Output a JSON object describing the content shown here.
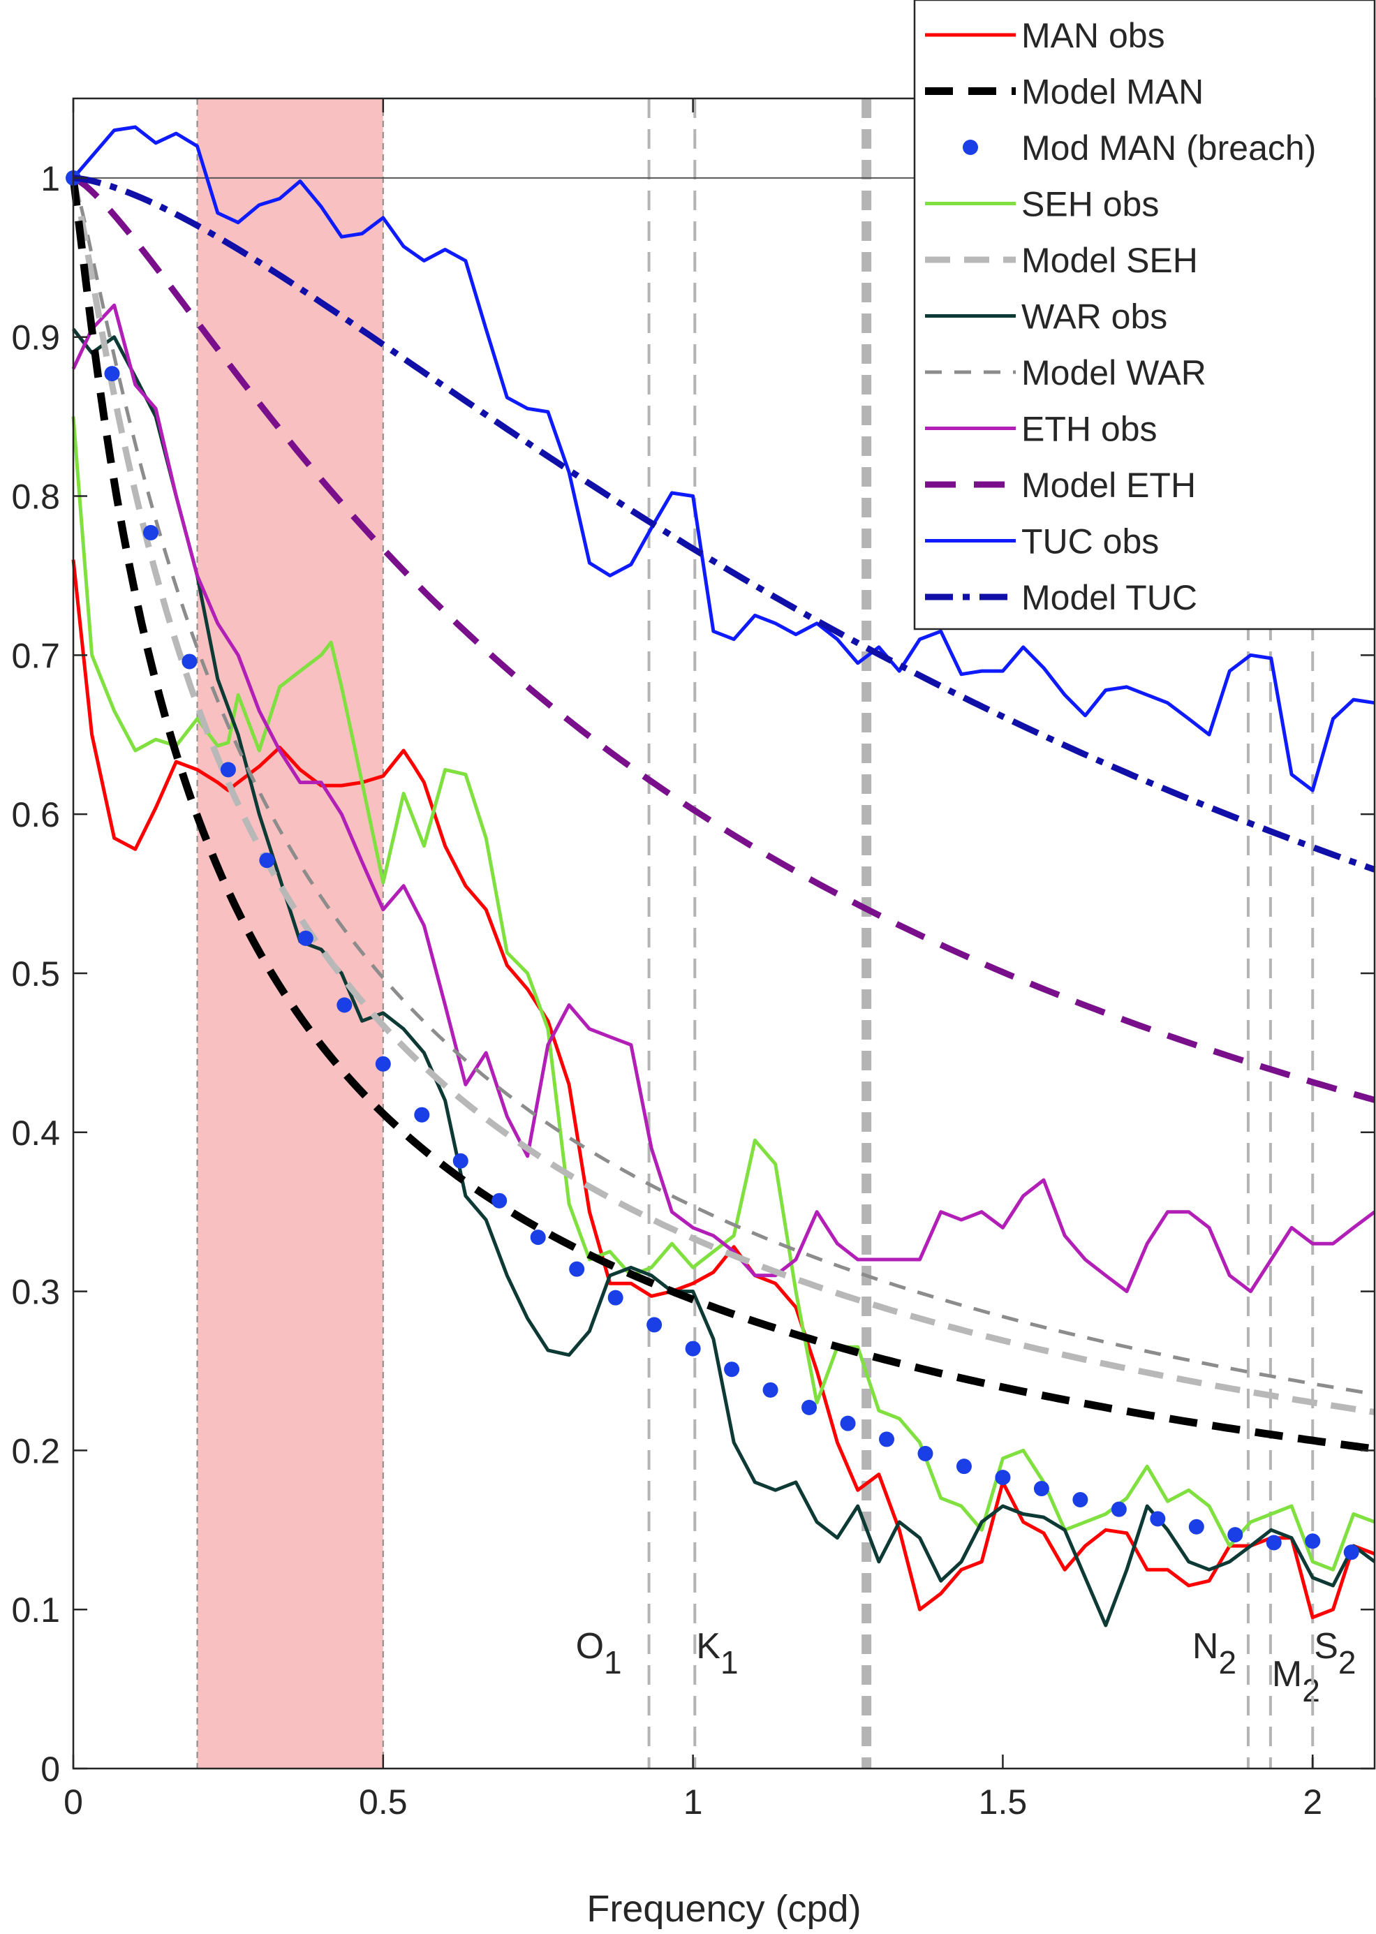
{
  "chart_data": {
    "type": "line",
    "xlabel": "Frequency (cpd)",
    "ylabel": "",
    "xlim": [
      0,
      2.1
    ],
    "ylim": [
      0,
      1.05
    ],
    "xticks": [
      0,
      0.5,
      1,
      1.5,
      2
    ],
    "xtick_labels": [
      "0",
      "0.5",
      "1",
      "1.5",
      "2"
    ],
    "yticks": [
      0,
      0.1,
      0.2,
      0.3,
      0.4,
      0.5,
      0.6,
      0.7,
      0.8,
      0.9,
      1
    ],
    "ytick_labels": [
      "0",
      "0.1",
      "0.2",
      "0.3",
      "0.4",
      "0.5",
      "0.6",
      "0.7",
      "0.8",
      "0.9",
      "1"
    ],
    "grid": false,
    "legend_position": "top-right",
    "reference_line_y": 1.0,
    "shaded_band": {
      "x": [
        0.2,
        0.5
      ],
      "color": "#f8c0c0"
    },
    "tidal_lines": [
      {
        "x": 0.929,
        "label": "O",
        "sub": "1"
      },
      {
        "x": 1.003,
        "label": "K",
        "sub": "1"
      },
      {
        "x": 1.28,
        "label": "",
        "sub": ""
      },
      {
        "x": 1.896,
        "label": "N",
        "sub": "2"
      },
      {
        "x": 1.932,
        "label": "M",
        "sub": "2"
      },
      {
        "x": 2.0,
        "label": "S",
        "sub": "2"
      }
    ],
    "series": [
      {
        "name": "MAN obs",
        "style": "solid",
        "color": "#ff0000",
        "x": [
          0,
          0.03,
          0.066,
          0.1,
          0.133,
          0.166,
          0.2,
          0.233,
          0.25,
          0.266,
          0.3,
          0.333,
          0.366,
          0.4,
          0.433,
          0.466,
          0.5,
          0.533,
          0.55,
          0.566,
          0.6,
          0.633,
          0.666,
          0.7,
          0.733,
          0.766,
          0.8,
          0.833,
          0.866,
          0.9,
          0.933,
          0.966,
          1.0,
          1.033,
          1.066,
          1.1,
          1.133,
          1.166,
          1.2,
          1.233,
          1.266,
          1.3,
          1.333,
          1.366,
          1.4,
          1.433,
          1.466,
          1.5,
          1.533,
          1.566,
          1.6,
          1.633,
          1.666,
          1.7,
          1.733,
          1.766,
          1.8,
          1.833,
          1.866,
          1.9,
          1.933,
          1.966,
          2.0,
          2.033,
          2.066,
          2.1
        ],
        "y": [
          0.76,
          0.65,
          0.585,
          0.578,
          0.604,
          0.633,
          0.628,
          0.62,
          0.615,
          0.62,
          0.63,
          0.642,
          0.628,
          0.618,
          0.618,
          0.62,
          0.624,
          0.64,
          0.63,
          0.62,
          0.58,
          0.555,
          0.54,
          0.505,
          0.49,
          0.47,
          0.43,
          0.35,
          0.305,
          0.305,
          0.297,
          0.3,
          0.305,
          0.312,
          0.328,
          0.31,
          0.305,
          0.29,
          0.25,
          0.205,
          0.175,
          0.185,
          0.15,
          0.1,
          0.11,
          0.125,
          0.13,
          0.18,
          0.155,
          0.148,
          0.125,
          0.14,
          0.15,
          0.148,
          0.125,
          0.125,
          0.115,
          0.118,
          0.14,
          0.14,
          0.145,
          0.145,
          0.095,
          0.1,
          0.14,
          0.135
        ]
      },
      {
        "name": "Model MAN",
        "style": "dashed-black",
        "color": "#000000",
        "model": true,
        "a": 10.5,
        "b": 0.55
      },
      {
        "name": "Mod MAN (breach)",
        "style": "dots",
        "color": "#1a3fe6",
        "x": [
          0,
          0.0625,
          0.125,
          0.1875,
          0.25,
          0.3125,
          0.375,
          0.4375,
          0.5,
          0.5625,
          0.625,
          0.6875,
          0.75,
          0.8125,
          0.875,
          0.9375,
          1.0,
          1.0625,
          1.125,
          1.1875,
          1.25,
          1.3125,
          1.375,
          1.4375,
          1.5,
          1.5625,
          1.625,
          1.6875,
          1.75,
          1.8125,
          1.875,
          1.9375,
          2.0,
          2.0625
        ],
        "y": [
          1.0,
          0.877,
          0.777,
          0.696,
          0.628,
          0.571,
          0.522,
          0.48,
          0.443,
          0.411,
          0.382,
          0.357,
          0.334,
          0.314,
          0.296,
          0.279,
          0.264,
          0.251,
          0.238,
          0.227,
          0.217,
          0.207,
          0.198,
          0.19,
          0.183,
          0.176,
          0.169,
          0.163,
          0.157,
          0.152,
          0.147,
          0.142,
          0.143,
          0.136
        ]
      },
      {
        "name": "SEH obs",
        "style": "solid",
        "color": "#7fe040",
        "x": [
          0,
          0.03,
          0.066,
          0.1,
          0.133,
          0.166,
          0.2,
          0.233,
          0.25,
          0.266,
          0.3,
          0.333,
          0.366,
          0.4,
          0.416,
          0.433,
          0.466,
          0.5,
          0.533,
          0.566,
          0.6,
          0.633,
          0.666,
          0.7,
          0.733,
          0.766,
          0.8,
          0.833,
          0.866,
          0.9,
          0.933,
          0.966,
          1.0,
          1.033,
          1.066,
          1.1,
          1.133,
          1.166,
          1.2,
          1.233,
          1.266,
          1.3,
          1.333,
          1.366,
          1.4,
          1.433,
          1.466,
          1.5,
          1.533,
          1.566,
          1.6,
          1.633,
          1.666,
          1.7,
          1.733,
          1.766,
          1.8,
          1.833,
          1.866,
          1.9,
          1.933,
          1.966,
          2.0,
          2.033,
          2.066,
          2.1
        ],
        "y": [
          0.85,
          0.7,
          0.665,
          0.64,
          0.647,
          0.643,
          0.66,
          0.643,
          0.645,
          0.675,
          0.64,
          0.68,
          0.69,
          0.7,
          0.708,
          0.68,
          0.62,
          0.557,
          0.613,
          0.58,
          0.628,
          0.625,
          0.585,
          0.513,
          0.5,
          0.465,
          0.355,
          0.32,
          0.325,
          0.31,
          0.315,
          0.33,
          0.315,
          0.325,
          0.335,
          0.395,
          0.38,
          0.3,
          0.23,
          0.265,
          0.265,
          0.225,
          0.22,
          0.205,
          0.17,
          0.165,
          0.15,
          0.195,
          0.2,
          0.18,
          0.15,
          0.155,
          0.16,
          0.17,
          0.19,
          0.168,
          0.175,
          0.165,
          0.14,
          0.155,
          0.16,
          0.165,
          0.13,
          0.125,
          0.16,
          0.155
        ]
      },
      {
        "name": "Model SEH",
        "style": "dashed-lightgray",
        "color": "#b8b8b8",
        "model": true,
        "a": 8.0,
        "b": 0.58
      },
      {
        "name": "WAR obs",
        "style": "solid",
        "color": "#0e3a36",
        "x": [
          0,
          0.03,
          0.066,
          0.1,
          0.133,
          0.166,
          0.2,
          0.233,
          0.266,
          0.3,
          0.333,
          0.366,
          0.4,
          0.433,
          0.466,
          0.5,
          0.533,
          0.566,
          0.6,
          0.633,
          0.666,
          0.7,
          0.733,
          0.766,
          0.8,
          0.833,
          0.866,
          0.9,
          0.933,
          0.966,
          1.0,
          1.033,
          1.066,
          1.1,
          1.133,
          1.166,
          1.2,
          1.233,
          1.266,
          1.3,
          1.333,
          1.366,
          1.4,
          1.433,
          1.466,
          1.5,
          1.533,
          1.566,
          1.6,
          1.633,
          1.666,
          1.7,
          1.733,
          1.766,
          1.8,
          1.833,
          1.866,
          1.9,
          1.933,
          1.966,
          2.0,
          2.033,
          2.066,
          2.1
        ],
        "y": [
          0.905,
          0.89,
          0.9,
          0.875,
          0.85,
          0.8,
          0.75,
          0.685,
          0.65,
          0.6,
          0.56,
          0.52,
          0.515,
          0.5,
          0.47,
          0.475,
          0.465,
          0.45,
          0.42,
          0.36,
          0.345,
          0.31,
          0.283,
          0.263,
          0.26,
          0.275,
          0.31,
          0.315,
          0.31,
          0.3,
          0.3,
          0.27,
          0.205,
          0.18,
          0.175,
          0.18,
          0.155,
          0.145,
          0.165,
          0.13,
          0.155,
          0.145,
          0.118,
          0.13,
          0.155,
          0.165,
          0.16,
          0.158,
          0.15,
          0.12,
          0.09,
          0.125,
          0.165,
          0.15,
          0.13,
          0.125,
          0.13,
          0.14,
          0.15,
          0.145,
          0.12,
          0.115,
          0.14,
          0.13
        ]
      },
      {
        "name": "Model WAR",
        "style": "dashed-gray",
        "color": "#8c8c8c",
        "model": true,
        "a": 7.0,
        "b": 0.6
      },
      {
        "name": "ETH obs",
        "style": "solid",
        "color": "#b21fb7",
        "x": [
          0,
          0.03,
          0.066,
          0.1,
          0.133,
          0.166,
          0.2,
          0.233,
          0.266,
          0.3,
          0.333,
          0.366,
          0.4,
          0.433,
          0.466,
          0.5,
          0.533,
          0.566,
          0.6,
          0.633,
          0.666,
          0.7,
          0.733,
          0.766,
          0.8,
          0.833,
          0.866,
          0.9,
          0.933,
          0.966,
          1.0,
          1.033,
          1.066,
          1.1,
          1.133,
          1.166,
          1.2,
          1.233,
          1.266,
          1.3,
          1.333,
          1.366,
          1.4,
          1.433,
          1.466,
          1.5,
          1.533,
          1.566,
          1.6,
          1.633,
          1.666,
          1.7,
          1.733,
          1.766,
          1.8,
          1.833,
          1.866,
          1.9,
          1.933,
          1.966,
          2.0,
          2.033,
          2.066,
          2.1
        ],
        "y": [
          0.88,
          0.905,
          0.92,
          0.87,
          0.855,
          0.8,
          0.75,
          0.72,
          0.7,
          0.665,
          0.64,
          0.62,
          0.62,
          0.6,
          0.57,
          0.54,
          0.555,
          0.53,
          0.48,
          0.43,
          0.45,
          0.41,
          0.385,
          0.455,
          0.48,
          0.465,
          0.46,
          0.455,
          0.39,
          0.35,
          0.34,
          0.335,
          0.325,
          0.31,
          0.31,
          0.32,
          0.35,
          0.33,
          0.32,
          0.32,
          0.32,
          0.32,
          0.35,
          0.345,
          0.35,
          0.34,
          0.36,
          0.37,
          0.335,
          0.32,
          0.31,
          0.3,
          0.33,
          0.35,
          0.35,
          0.34,
          0.31,
          0.3,
          0.32,
          0.34,
          0.33,
          0.33,
          0.34,
          0.35
        ]
      },
      {
        "name": "Model ETH",
        "style": "dashed-purple",
        "color": "#7a0f8c",
        "model": true,
        "a": 1.75,
        "b": 0.66
      },
      {
        "name": "TUC obs",
        "style": "solid",
        "color": "#0f1bff",
        "x": [
          0,
          0.033,
          0.066,
          0.1,
          0.133,
          0.166,
          0.2,
          0.233,
          0.266,
          0.3,
          0.333,
          0.366,
          0.4,
          0.433,
          0.466,
          0.5,
          0.533,
          0.566,
          0.6,
          0.633,
          0.666,
          0.7,
          0.733,
          0.766,
          0.8,
          0.833,
          0.866,
          0.9,
          0.933,
          0.966,
          1.0,
          1.033,
          1.066,
          1.1,
          1.133,
          1.166,
          1.2,
          1.233,
          1.266,
          1.3,
          1.333,
          1.366,
          1.4,
          1.433,
          1.466,
          1.5,
          1.533,
          1.566,
          1.6,
          1.633,
          1.666,
          1.7,
          1.733,
          1.766,
          1.8,
          1.833,
          1.866,
          1.9,
          1.933,
          1.966,
          2.0,
          2.033,
          2.066,
          2.1
        ],
        "y": [
          1.0,
          1.015,
          1.03,
          1.032,
          1.022,
          1.028,
          1.02,
          0.978,
          0.972,
          0.983,
          0.987,
          0.998,
          0.982,
          0.963,
          0.965,
          0.975,
          0.957,
          0.948,
          0.955,
          0.948,
          0.905,
          0.862,
          0.855,
          0.853,
          0.815,
          0.758,
          0.75,
          0.757,
          0.78,
          0.802,
          0.8,
          0.715,
          0.71,
          0.725,
          0.72,
          0.713,
          0.72,
          0.71,
          0.695,
          0.705,
          0.69,
          0.71,
          0.715,
          0.688,
          0.69,
          0.69,
          0.705,
          0.692,
          0.675,
          0.662,
          0.678,
          0.68,
          0.675,
          0.67,
          0.66,
          0.65,
          0.69,
          0.7,
          0.698,
          0.625,
          0.615,
          0.66,
          0.672,
          0.67
        ]
      },
      {
        "name": "Model TUC",
        "style": "dashdot-navy",
        "color": "#1010a8",
        "model": true,
        "a": 0.7,
        "b": 0.75
      }
    ]
  }
}
